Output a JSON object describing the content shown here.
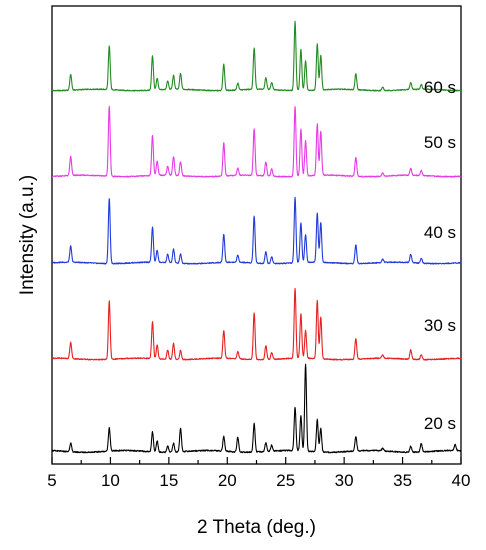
{
  "chart_data": {
    "type": "line",
    "title": "",
    "xlabel": "2 Theta (deg.)",
    "ylabel": "Intensity (a.u.)",
    "xlim": [
      5,
      40
    ],
    "x_ticks": [
      "5",
      "10",
      "15",
      "20",
      "25",
      "30",
      "35",
      "40"
    ],
    "y_ticks_shown": false,
    "grid": false,
    "legend": "series labels printed at right end of each trace",
    "stacked_offset": true,
    "series": [
      {
        "name": "60 s",
        "color": "#228B22",
        "baseline": 0.03,
        "peaks": [
          {
            "x": 6.6,
            "y": 0.23
          },
          {
            "x": 9.9,
            "y": 0.63
          },
          {
            "x": 13.6,
            "y": 0.5
          },
          {
            "x": 14.0,
            "y": 0.17
          },
          {
            "x": 14.9,
            "y": 0.12
          },
          {
            "x": 15.4,
            "y": 0.2
          },
          {
            "x": 16.0,
            "y": 0.23
          },
          {
            "x": 19.7,
            "y": 0.38
          },
          {
            "x": 20.9,
            "y": 0.1
          },
          {
            "x": 22.3,
            "y": 0.6
          },
          {
            "x": 23.3,
            "y": 0.17
          },
          {
            "x": 23.8,
            "y": 0.1
          },
          {
            "x": 25.8,
            "y": 1.0
          },
          {
            "x": 26.3,
            "y": 0.6
          },
          {
            "x": 26.7,
            "y": 0.43
          },
          {
            "x": 27.7,
            "y": 0.67
          },
          {
            "x": 28.0,
            "y": 0.5
          },
          {
            "x": 31.0,
            "y": 0.23
          },
          {
            "x": 33.3,
            "y": 0.05
          },
          {
            "x": 35.7,
            "y": 0.1
          },
          {
            "x": 36.6,
            "y": 0.07
          }
        ]
      },
      {
        "name": "50 s",
        "color": "#E63BE6",
        "baseline": 0.03,
        "peaks": [
          {
            "x": 6.6,
            "y": 0.27
          },
          {
            "x": 9.9,
            "y": 1.0
          },
          {
            "x": 13.6,
            "y": 0.57
          },
          {
            "x": 14.0,
            "y": 0.2
          },
          {
            "x": 14.9,
            "y": 0.13
          },
          {
            "x": 15.4,
            "y": 0.27
          },
          {
            "x": 16.0,
            "y": 0.2
          },
          {
            "x": 19.7,
            "y": 0.47
          },
          {
            "x": 20.9,
            "y": 0.1
          },
          {
            "x": 22.3,
            "y": 0.67
          },
          {
            "x": 23.3,
            "y": 0.2
          },
          {
            "x": 23.8,
            "y": 0.1
          },
          {
            "x": 25.8,
            "y": 1.0
          },
          {
            "x": 26.3,
            "y": 0.67
          },
          {
            "x": 26.7,
            "y": 0.5
          },
          {
            "x": 27.7,
            "y": 0.73
          },
          {
            "x": 28.0,
            "y": 0.63
          },
          {
            "x": 31.0,
            "y": 0.27
          },
          {
            "x": 33.3,
            "y": 0.05
          },
          {
            "x": 35.7,
            "y": 0.1
          },
          {
            "x": 36.6,
            "y": 0.07
          }
        ]
      },
      {
        "name": "40 s",
        "color": "#1F3BD9",
        "baseline": 0.03,
        "peaks": [
          {
            "x": 6.6,
            "y": 0.23
          },
          {
            "x": 9.9,
            "y": 0.93
          },
          {
            "x": 13.6,
            "y": 0.5
          },
          {
            "x": 14.0,
            "y": 0.17
          },
          {
            "x": 14.9,
            "y": 0.12
          },
          {
            "x": 15.4,
            "y": 0.2
          },
          {
            "x": 16.0,
            "y": 0.13
          },
          {
            "x": 19.7,
            "y": 0.4
          },
          {
            "x": 20.9,
            "y": 0.1
          },
          {
            "x": 22.3,
            "y": 0.67
          },
          {
            "x": 23.3,
            "y": 0.17
          },
          {
            "x": 23.8,
            "y": 0.1
          },
          {
            "x": 25.8,
            "y": 0.93
          },
          {
            "x": 26.3,
            "y": 0.57
          },
          {
            "x": 26.7,
            "y": 0.4
          },
          {
            "x": 27.7,
            "y": 0.7
          },
          {
            "x": 28.0,
            "y": 0.57
          },
          {
            "x": 31.0,
            "y": 0.27
          },
          {
            "x": 33.3,
            "y": 0.05
          },
          {
            "x": 35.7,
            "y": 0.12
          },
          {
            "x": 36.6,
            "y": 0.07
          }
        ]
      },
      {
        "name": "30 s",
        "color": "#E62020",
        "baseline": 0.03,
        "peaks": [
          {
            "x": 6.6,
            "y": 0.23
          },
          {
            "x": 9.9,
            "y": 0.83
          },
          {
            "x": 13.6,
            "y": 0.53
          },
          {
            "x": 14.0,
            "y": 0.2
          },
          {
            "x": 14.9,
            "y": 0.13
          },
          {
            "x": 15.4,
            "y": 0.23
          },
          {
            "x": 16.0,
            "y": 0.13
          },
          {
            "x": 19.7,
            "y": 0.4
          },
          {
            "x": 20.9,
            "y": 0.1
          },
          {
            "x": 22.3,
            "y": 0.67
          },
          {
            "x": 23.3,
            "y": 0.2
          },
          {
            "x": 23.8,
            "y": 0.1
          },
          {
            "x": 25.8,
            "y": 1.0
          },
          {
            "x": 26.3,
            "y": 0.63
          },
          {
            "x": 26.7,
            "y": 0.4
          },
          {
            "x": 27.7,
            "y": 0.83
          },
          {
            "x": 28.0,
            "y": 0.6
          },
          {
            "x": 31.0,
            "y": 0.3
          },
          {
            "x": 33.3,
            "y": 0.05
          },
          {
            "x": 35.7,
            "y": 0.13
          },
          {
            "x": 36.6,
            "y": 0.07
          }
        ]
      },
      {
        "name": "20 s",
        "color": "#000000",
        "baseline": 0.03,
        "peaks": [
          {
            "x": 6.6,
            "y": 0.1
          },
          {
            "x": 9.9,
            "y": 0.27
          },
          {
            "x": 13.6,
            "y": 0.23
          },
          {
            "x": 14.0,
            "y": 0.13
          },
          {
            "x": 14.9,
            "y": 0.07
          },
          {
            "x": 15.4,
            "y": 0.1
          },
          {
            "x": 16.0,
            "y": 0.27
          },
          {
            "x": 19.7,
            "y": 0.17
          },
          {
            "x": 20.9,
            "y": 0.17
          },
          {
            "x": 22.3,
            "y": 0.33
          },
          {
            "x": 23.3,
            "y": 0.1
          },
          {
            "x": 23.8,
            "y": 0.07
          },
          {
            "x": 25.8,
            "y": 0.5
          },
          {
            "x": 26.3,
            "y": 0.4
          },
          {
            "x": 26.7,
            "y": 1.0
          },
          {
            "x": 27.7,
            "y": 0.37
          },
          {
            "x": 28.0,
            "y": 0.27
          },
          {
            "x": 31.0,
            "y": 0.17
          },
          {
            "x": 33.3,
            "y": 0.03
          },
          {
            "x": 35.7,
            "y": 0.07
          },
          {
            "x": 36.6,
            "y": 0.1
          },
          {
            "x": 39.5,
            "y": 0.07
          }
        ]
      }
    ]
  }
}
